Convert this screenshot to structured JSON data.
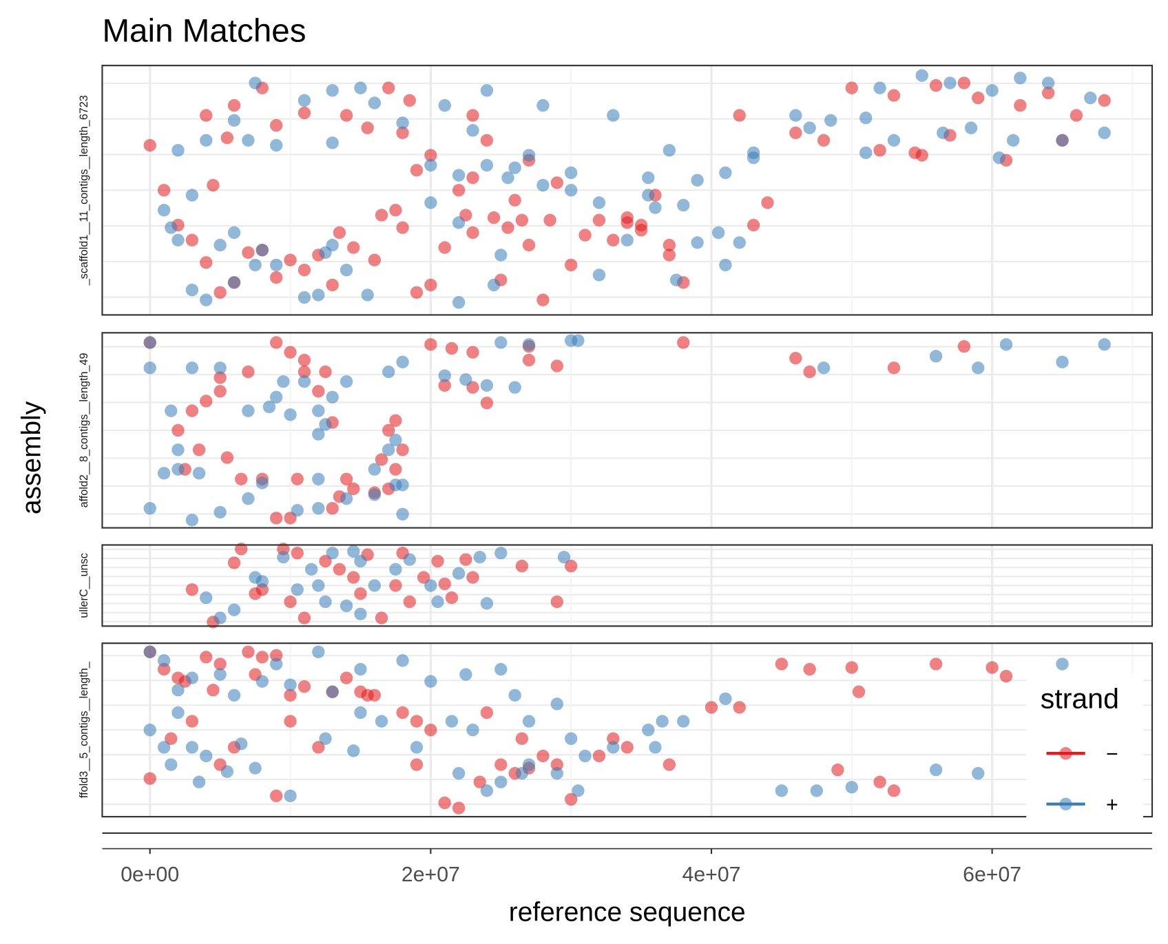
{
  "chart_data": [
    {
      "type": "scatter",
      "title": "Main Matches",
      "y_label": "assembly",
      "legend_title": "strand",
      "label": "_scaffold1__11_contigs__length_6723",
      "xlim": [
        -3400000.0,
        71400000.0
      ],
      "ylim": [
        0,
        100
      ],
      "grid": true,
      "series": [
        {
          "name": "−",
          "color": "#e41a1c",
          "x": [
            0,
            8000000.0,
            17000000.0,
            6000000.0,
            11000000.0,
            14000000.0,
            23000000.0,
            5500000.0,
            18000000.0,
            24000000.0,
            20000000.0,
            27000000.0,
            19000000.0,
            23000000.0,
            34000000.0,
            29000000.0,
            36000000.0,
            26000000.0,
            3000000.0,
            7000000.0,
            11000000.0,
            16000000.0,
            20000000.0,
            4000000.0,
            5000000.0,
            9000000.0,
            13000000.0,
            19000000.0,
            25000000.0,
            30000000.0,
            35000000.0,
            37000000.0,
            43000000.0,
            46000000.0,
            50000000.0,
            53000000.0,
            56000000.0,
            58000000.0,
            59000000.0,
            62000000.0,
            64000000.0,
            66000000.0,
            68000000.0,
            42000000.0,
            48000000.0,
            52000000.0,
            54500000.0,
            55000000.0,
            57000000.0,
            61000000.0,
            65000000.0,
            16500000.0,
            18000000.0,
            21000000.0,
            23000000.0,
            27000000.0,
            31000000.0,
            33000000.0,
            35000000.0,
            37000000.0,
            10000000.0,
            6000000.0,
            28000000.0,
            44000000.0,
            38000000.0,
            4500000.0,
            18500000.0,
            4000000.0,
            15500000.0,
            9000000.0,
            22500000.0,
            24500000.0,
            25500000.0,
            26500000.0,
            28500000.0,
            32000000.0,
            34000000.0,
            13500000.0,
            2000000.0,
            8000000.0,
            12000000.0,
            14500000.0,
            17500000.0,
            22000000.0,
            1000000.0
          ],
          "values": [
            68,
            91,
            91,
            84,
            81,
            80,
            80,
            71,
            73,
            70,
            64,
            62,
            58,
            55,
            39,
            53,
            48,
            46,
            30,
            25,
            18,
            22,
            12,
            21,
            9,
            15,
            12,
            9,
            14,
            20,
            34,
            28,
            36,
            73,
            91,
            88,
            92,
            93,
            87,
            84,
            89,
            80,
            86,
            80,
            70,
            66,
            65,
            64,
            72,
            62,
            70,
            40,
            35,
            27,
            33,
            28,
            32,
            30,
            36,
            24,
            22,
            13,
            6,
            45,
            13,
            52,
            86,
            80,
            75,
            76,
            40,
            39,
            35,
            38,
            38,
            38,
            37,
            33,
            36,
            26,
            24,
            27,
            42,
            50,
            50
          ]
        },
        {
          "name": "+",
          "color": "#377eb8",
          "x": [
            6000000.0,
            11000000.0,
            15000000.0,
            16000000.0,
            23000000.0,
            7000000.0,
            13000000.0,
            9000000.0,
            18000000.0,
            24000000.0,
            28000000.0,
            33000000.0,
            27000000.0,
            24000000.0,
            25500000.0,
            28000000.0,
            30000000.0,
            32000000.0,
            36000000.0,
            37000000.0,
            35500000.0,
            38000000.0,
            34000000.0,
            22000000.0,
            20000000.0,
            26000000.0,
            30000000.0,
            35500000.0,
            39000000.0,
            41000000.0,
            43000000.0,
            46000000.0,
            48500000.0,
            52000000.0,
            55000000.0,
            57000000.0,
            60000000.0,
            62000000.0,
            64000000.0,
            67000000.0,
            68000000.0,
            58500000.0,
            61500000.0,
            65000000.0,
            43000000.0,
            47000000.0,
            51000000.0,
            53000000.0,
            51000000.0,
            56500000.0,
            60500000.0,
            2000000.0,
            5000000.0,
            7500000.0,
            9000000.0,
            12500000.0,
            14000000.0,
            15500000.0,
            3000000.0,
            4000000.0,
            11000000.0,
            12000000.0,
            22000000.0,
            1000000.0,
            3000000.0,
            6000000.0,
            8000000.0,
            13000000.0,
            20000000.0,
            22000000.0,
            25000000.0,
            32000000.0,
            41000000.0,
            42000000.0,
            40500000.0,
            39000000.0,
            37500000.0,
            24500000.0,
            4000000.0,
            21000000.0,
            13000000.0,
            7500000.0,
            2000000.0,
            1500000.0,
            6000000.0
          ],
          "values": [
            78,
            86,
            91,
            85,
            74,
            70,
            69,
            68,
            77,
            90,
            84,
            80,
            64,
            60,
            55,
            52,
            50,
            45,
            43,
            66,
            48,
            44,
            30,
            56,
            60,
            59,
            57,
            55,
            54,
            57,
            65,
            80,
            78,
            91,
            96,
            93,
            90,
            95,
            93,
            87,
            73,
            75,
            70,
            70,
            63,
            75,
            79,
            70,
            65,
            73,
            63,
            30,
            28,
            20,
            20,
            25,
            18,
            8,
            10,
            6,
            7,
            8,
            5,
            42,
            48,
            33,
            26,
            28,
            45,
            37,
            24,
            16,
            20,
            29,
            33,
            29,
            14,
            12,
            70,
            84,
            90,
            93,
            66,
            35,
            13
          ]
        }
      ]
    },
    {
      "type": "scatter",
      "label": "affold2__8_contigs__length_49",
      "xlim": [
        -3400000.0,
        71400000.0
      ],
      "ylim": [
        0,
        100
      ],
      "grid": true,
      "series": [
        {
          "color": "#e41a1c",
          "x": [
            0,
            9000000.0,
            10000000.0,
            11000000.0,
            20000000.0,
            21500000.0,
            23000000.0,
            27000000.0,
            29000000.0,
            27000000.0,
            5000000.0,
            4000000.0,
            3000000.0,
            2000000.0,
            3500000.0,
            2500000.0,
            5500000.0,
            8000000.0,
            11000000.0,
            12000000.0,
            17500000.0,
            17000000.0,
            18000000.0,
            17500000.0,
            17000000.0,
            16000000.0,
            14000000.0,
            13000000.0,
            10500000.0,
            9000000.0,
            6500000.0,
            13000000.0,
            21000000.0,
            23000000.0,
            24000000.0,
            46000000.0,
            47000000.0,
            53000000.0,
            58000000.0,
            38000000.0,
            10000000.0,
            14500000.0,
            16500000.0,
            5000000.0,
            12500000.0,
            7000000.0,
            13500000.0
          ],
          "values": [
            95,
            95,
            90,
            86,
            94,
            92,
            90,
            93,
            83,
            86,
            70,
            65,
            60,
            50,
            40,
            30,
            36,
            25,
            80,
            70,
            55,
            50,
            40,
            30,
            20,
            18,
            25,
            10,
            25,
            5,
            25,
            54,
            73,
            72,
            64,
            87,
            80,
            82,
            93,
            95,
            5,
            20,
            35,
            77,
            80,
            80,
            16
          ]
        },
        {
          "color": "#377eb8",
          "x": [
            0,
            0,
            3000000.0,
            5000000.0,
            7000000.0,
            8500000.0,
            9000000.0,
            9500000.0,
            12000000.0,
            11000000.0,
            12500000.0,
            14000000.0,
            17000000.0,
            18000000.0,
            21000000.0,
            22500000.0,
            24000000.0,
            26000000.0,
            25000000.0,
            27000000.0,
            30000000.0,
            30500000.0,
            3000000.0,
            5000000.0,
            7000000.0,
            10500000.0,
            12000000.0,
            14000000.0,
            16000000.0,
            17500000.0,
            18000000.0,
            18000000.0,
            2000000.0,
            1000000.0,
            2000000.0,
            1500000.0,
            3500000.0,
            10000000.0,
            8000000.0,
            13000000.0,
            17000000.0,
            17500000.0,
            12000000.0,
            0,
            48000000.0,
            56000000.0,
            59000000.0,
            61000000.0,
            65000000.0,
            68000000.0,
            12000000.0,
            16000000.0
          ],
          "values": [
            95,
            82,
            82,
            82,
            60,
            62,
            67,
            75,
            60,
            75,
            53,
            75,
            80,
            85,
            78,
            76,
            73,
            72,
            95,
            94,
            96,
            96,
            4,
            8,
            15,
            9,
            10,
            15,
            17,
            22,
            7,
            22,
            30,
            28,
            40,
            60,
            28,
            58,
            23,
            67,
            40,
            45,
            48,
            10,
            82,
            88,
            82,
            94,
            85,
            94,
            25,
            30
          ]
        }
      ]
    },
    {
      "type": "scatter",
      "label": "ullerC__unsc",
      "xlim": [
        -3400000.0,
        71400000.0
      ],
      "ylim": [
        0,
        100
      ],
      "grid": true,
      "series": [
        {
          "color": "#e41a1c",
          "x": [
            6000000.0,
            4500000.0,
            8000000.0,
            10000000.0,
            12500000.0,
            13500000.0,
            15500000.0,
            16500000.0,
            17500000.0,
            19500000.0,
            20500000.0,
            21500000.0,
            22500000.0,
            23000000.0,
            29000000.0,
            30000000.0,
            26500000.0,
            14500000.0,
            11000000.0,
            6500000.0,
            9500000.0,
            10500000.0,
            18000000.0,
            15000000.0,
            7500000.0,
            18500000.0,
            21000000.0,
            3000000.0
          ],
          "values": [
            78,
            5,
            45,
            30,
            80,
            70,
            88,
            10,
            50,
            60,
            80,
            35,
            82,
            60,
            30,
            74,
            74,
            60,
            10,
            95,
            95,
            90,
            90,
            40,
            40,
            30,
            52,
            45
          ]
        },
        {
          "color": "#377eb8",
          "x": [
            4000000.0,
            5000000.0,
            7500000.0,
            9500000.0,
            8000000.0,
            11500000.0,
            13000000.0,
            14000000.0,
            15000000.0,
            15000000.0,
            17500000.0,
            20000000.0,
            20500000.0,
            22000000.0,
            23500000.0,
            25000000.0,
            29500000.0,
            10500000.0,
            12500000.0,
            16000000.0,
            18500000.0,
            6000000.0,
            14500000.0,
            12000000.0,
            24000000.0
          ],
          "values": [
            35,
            10,
            60,
            85,
            55,
            70,
            90,
            25,
            15,
            80,
            70,
            50,
            30,
            65,
            85,
            90,
            85,
            45,
            30,
            50,
            82,
            20,
            92,
            50,
            28
          ]
        }
      ]
    },
    {
      "type": "scatter",
      "label": "ffold3__5_contigs__length_",
      "x_label": "reference sequence",
      "xlim": [
        -3400000.0,
        71400000.0
      ],
      "ylim": [
        0,
        100
      ],
      "grid": true,
      "xticks": [
        {
          "value": 0,
          "label": "0e+00"
        },
        {
          "value": 20000000.0,
          "label": "2e+07"
        },
        {
          "value": 40000000.0,
          "label": "4e+07"
        },
        {
          "value": 60000000.0,
          "label": "6e+07"
        }
      ],
      "series": [
        {
          "color": "#e41a1c",
          "x": [
            0,
            1000000.0,
            2000000.0,
            4000000.0,
            5000000.0,
            7000000.0,
            8000000.0,
            9000000.0,
            10000000.0,
            11000000.0,
            13000000.0,
            15000000.0,
            16000000.0,
            18000000.0,
            19000000.0,
            20000000.0,
            21000000.0,
            22000000.0,
            25000000.0,
            27000000.0,
            29000000.0,
            30000000.0,
            32000000.0,
            34000000.0,
            37000000.0,
            42000000.0,
            45000000.0,
            47000000.0,
            50000000.0,
            50500000.0,
            56000000.0,
            60000000.0,
            61000000.0,
            52000000.0,
            53000000.0,
            49000000.0,
            40000000.0,
            3000000.0,
            6000000.0,
            10000000.0,
            12000000.0,
            19000000.0,
            23500000.0,
            26000000.0,
            28000000.0,
            33000000.0,
            0,
            1500000.0,
            5000000.0,
            9000000.0,
            2500000.0,
            7500000.0,
            15500000.0,
            14000000.0,
            24000000.0,
            4500000.0,
            26500000.0
          ],
          "values": [
            95,
            85,
            80,
            92,
            88,
            95,
            92,
            93,
            70,
            75,
            72,
            72,
            70,
            60,
            55,
            50,
            8,
            5,
            30,
            28,
            30,
            10,
            35,
            40,
            30,
            63,
            88,
            85,
            86,
            72,
            88,
            86,
            81,
            20,
            15,
            27,
            63,
            55,
            40,
            55,
            40,
            30,
            20,
            25,
            35,
            45,
            22,
            45,
            30,
            12,
            78,
            82,
            70,
            80,
            60,
            73,
            45
          ]
        },
        {
          "color": "#377eb8",
          "x": [
            0,
            1000000.0,
            2000000.0,
            3000000.0,
            5000000.0,
            6000000.0,
            9000000.0,
            12000000.0,
            15000000.0,
            18000000.0,
            20000000.0,
            13000000.0,
            10000000.0,
            8000000.0,
            16500000.0,
            22000000.0,
            24000000.0,
            25000000.0,
            26500000.0,
            27000000.0,
            29000000.0,
            30500000.0,
            31000000.0,
            33000000.0,
            35500000.0,
            36500000.0,
            38000000.0,
            29000000.0,
            36000000.0,
            41000000.0,
            47500000.0,
            50000000.0,
            59000000.0,
            65000000.0,
            56000000.0,
            45000000.0,
            0,
            1000000.0,
            3000000.0,
            2000000.0,
            4000000.0,
            6500000.0,
            7500000.0,
            12500000.0,
            14500000.0,
            15000000.0,
            21500000.0,
            23000000.0,
            25000000.0,
            26000000.0,
            27000000.0,
            30000000.0,
            3500000.0,
            5500000.0,
            10000000.0,
            19000000.0,
            22500000.0,
            1500000.0
          ],
          "values": [
            95,
            90,
            73,
            80,
            82,
            70,
            88,
            95,
            85,
            90,
            78,
            72,
            76,
            78,
            55,
            25,
            15,
            20,
            25,
            30,
            25,
            15,
            35,
            40,
            50,
            55,
            55,
            65,
            40,
            68,
            15,
            17,
            25,
            88,
            27,
            15,
            50,
            40,
            40,
            60,
            35,
            42,
            28,
            45,
            38,
            60,
            55,
            50,
            85,
            70,
            55,
            45,
            20,
            26,
            12,
            40,
            82,
            30
          ]
        }
      ]
    }
  ]
}
